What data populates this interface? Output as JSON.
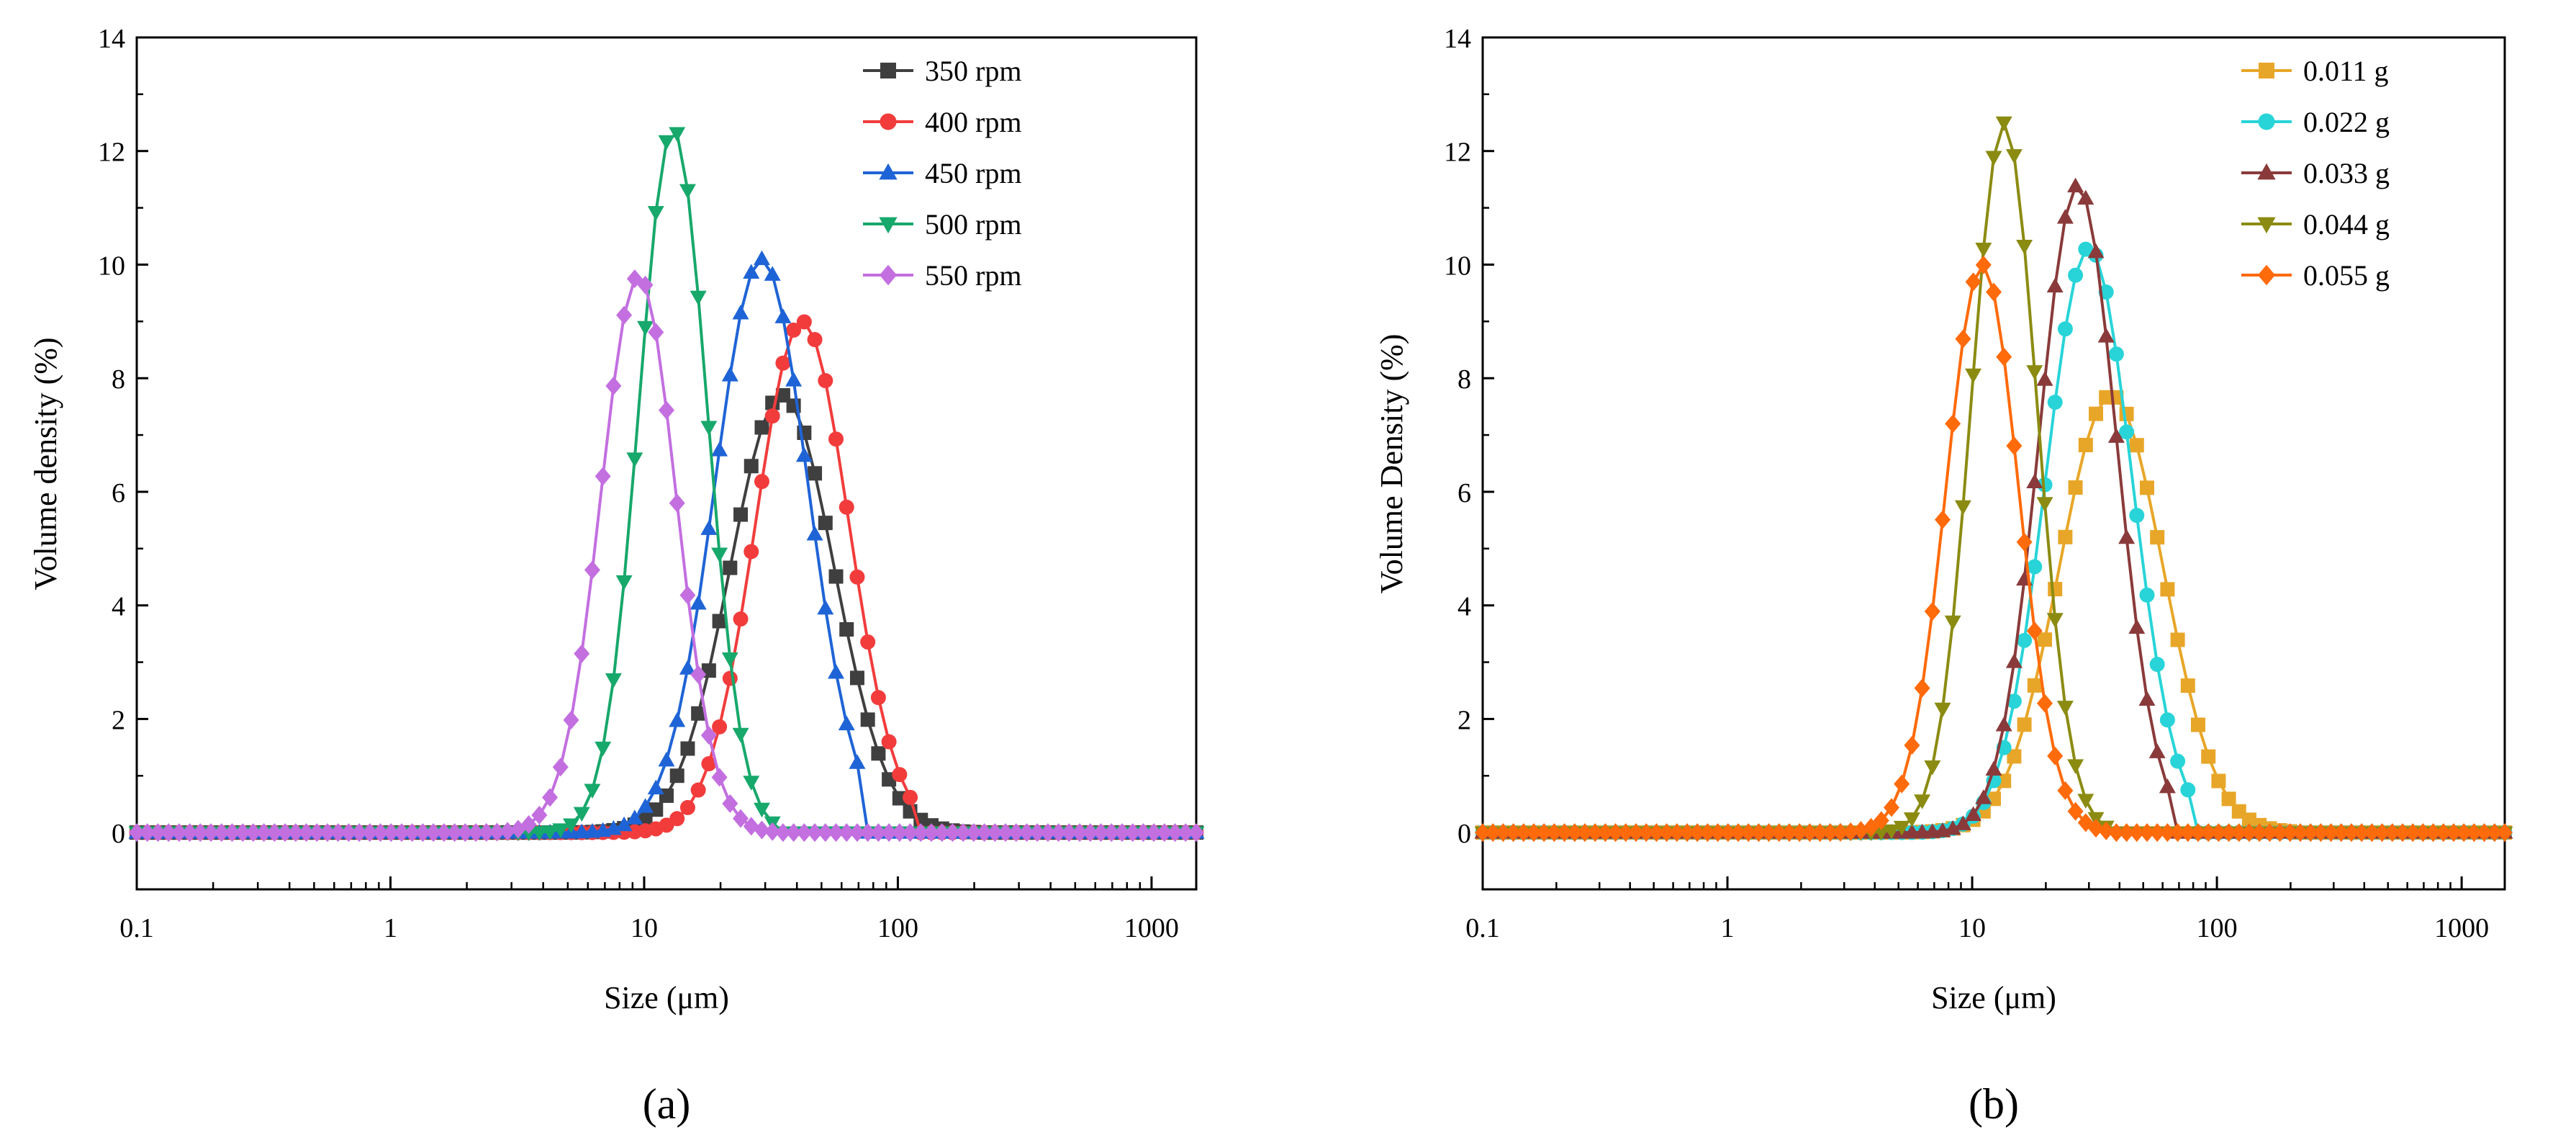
{
  "panel_labels": [
    "(a)",
    "(b)"
  ],
  "chart_data": [
    {
      "type": "line",
      "panel": "(a)",
      "xlabel": "Size (μm)",
      "ylabel": "Volume density (%)",
      "xscale": "log",
      "xlim": [
        0.1,
        1500
      ],
      "ylim": [
        -1,
        14
      ],
      "xticks": [
        0.1,
        1,
        10,
        100,
        1000
      ],
      "xtick_labels": [
        "0.1",
        "1",
        "10",
        "100",
        "1000"
      ],
      "yticks": [
        0,
        2,
        4,
        6,
        8,
        10,
        12,
        14
      ],
      "ytick_labels": [
        "0",
        "2",
        "4",
        "6",
        "8",
        "10",
        "12",
        "14"
      ],
      "legend_position": "top-right",
      "grid": false,
      "series": [
        {
          "name": "350 rpm",
          "color": "#3f3f3f",
          "marker": "square",
          "peak_x": 35,
          "peak_y": 7.7,
          "sigma": 0.58,
          "start": 2.1,
          "end": 210
        },
        {
          "name": "400 rpm",
          "color": "#f23c3c",
          "marker": "circle",
          "peak_x": 42,
          "peak_y": 9.0,
          "sigma": 0.52,
          "start": 1.9,
          "end": 115
        },
        {
          "name": "450 rpm",
          "color": "#1f64d6",
          "marker": "triangle-up",
          "peak_x": 29,
          "peak_y": 10.1,
          "sigma": 0.52,
          "start": 1.6,
          "end": 75
        },
        {
          "name": "500 rpm",
          "color": "#17a86b",
          "marker": "triangle-down",
          "peak_x": 13,
          "peak_y": 12.4,
          "sigma": 0.38,
          "start": 1.6,
          "end": 33
        },
        {
          "name": "550 rpm",
          "color": "#c36fe0",
          "marker": "diamond",
          "peak_x": 9.5,
          "peak_y": 9.8,
          "sigma": 0.42,
          "start": 1.4,
          "end": 33
        }
      ]
    },
    {
      "type": "line",
      "panel": "(b)",
      "xlabel": "Size (μm)",
      "ylabel": "Volume Density (%)",
      "xscale": "log",
      "xlim": [
        0.1,
        1500
      ],
      "ylim": [
        -1,
        14
      ],
      "xticks": [
        0.1,
        1,
        10,
        100,
        1000
      ],
      "xtick_labels": [
        "0.1",
        "1",
        "10",
        "100",
        "1000"
      ],
      "yticks": [
        0,
        2,
        4,
        6,
        8,
        10,
        12,
        14
      ],
      "ytick_labels": [
        "0",
        "2",
        "4",
        "6",
        "8",
        "10",
        "12",
        "14"
      ],
      "legend_position": "top-right",
      "grid": false,
      "series": [
        {
          "name": "0.011 g",
          "color": "#e8a628",
          "marker": "square",
          "peak_x": 37,
          "peak_y": 7.7,
          "sigma": 0.6,
          "start": 2.3,
          "end": 200
        },
        {
          "name": "0.022 g",
          "color": "#28d4d8",
          "marker": "circle",
          "peak_x": 30,
          "peak_y": 10.3,
          "sigma": 0.5,
          "start": 1.8,
          "end": 80
        },
        {
          "name": "0.033 g",
          "color": "#8a3a3a",
          "marker": "triangle-up",
          "peak_x": 27,
          "peak_y": 11.4,
          "sigma": 0.45,
          "start": 1.7,
          "end": 65
        },
        {
          "name": "0.044 g",
          "color": "#8b8b12",
          "marker": "triangle-down",
          "peak_x": 13.5,
          "peak_y": 12.5,
          "sigma": 0.38,
          "start": 1.8,
          "end": 38
        },
        {
          "name": "0.055 g",
          "color": "#ff6a0a",
          "marker": "diamond",
          "peak_x": 11,
          "peak_y": 10.0,
          "sigma": 0.42,
          "start": 1.6,
          "end": 38
        }
      ]
    }
  ]
}
